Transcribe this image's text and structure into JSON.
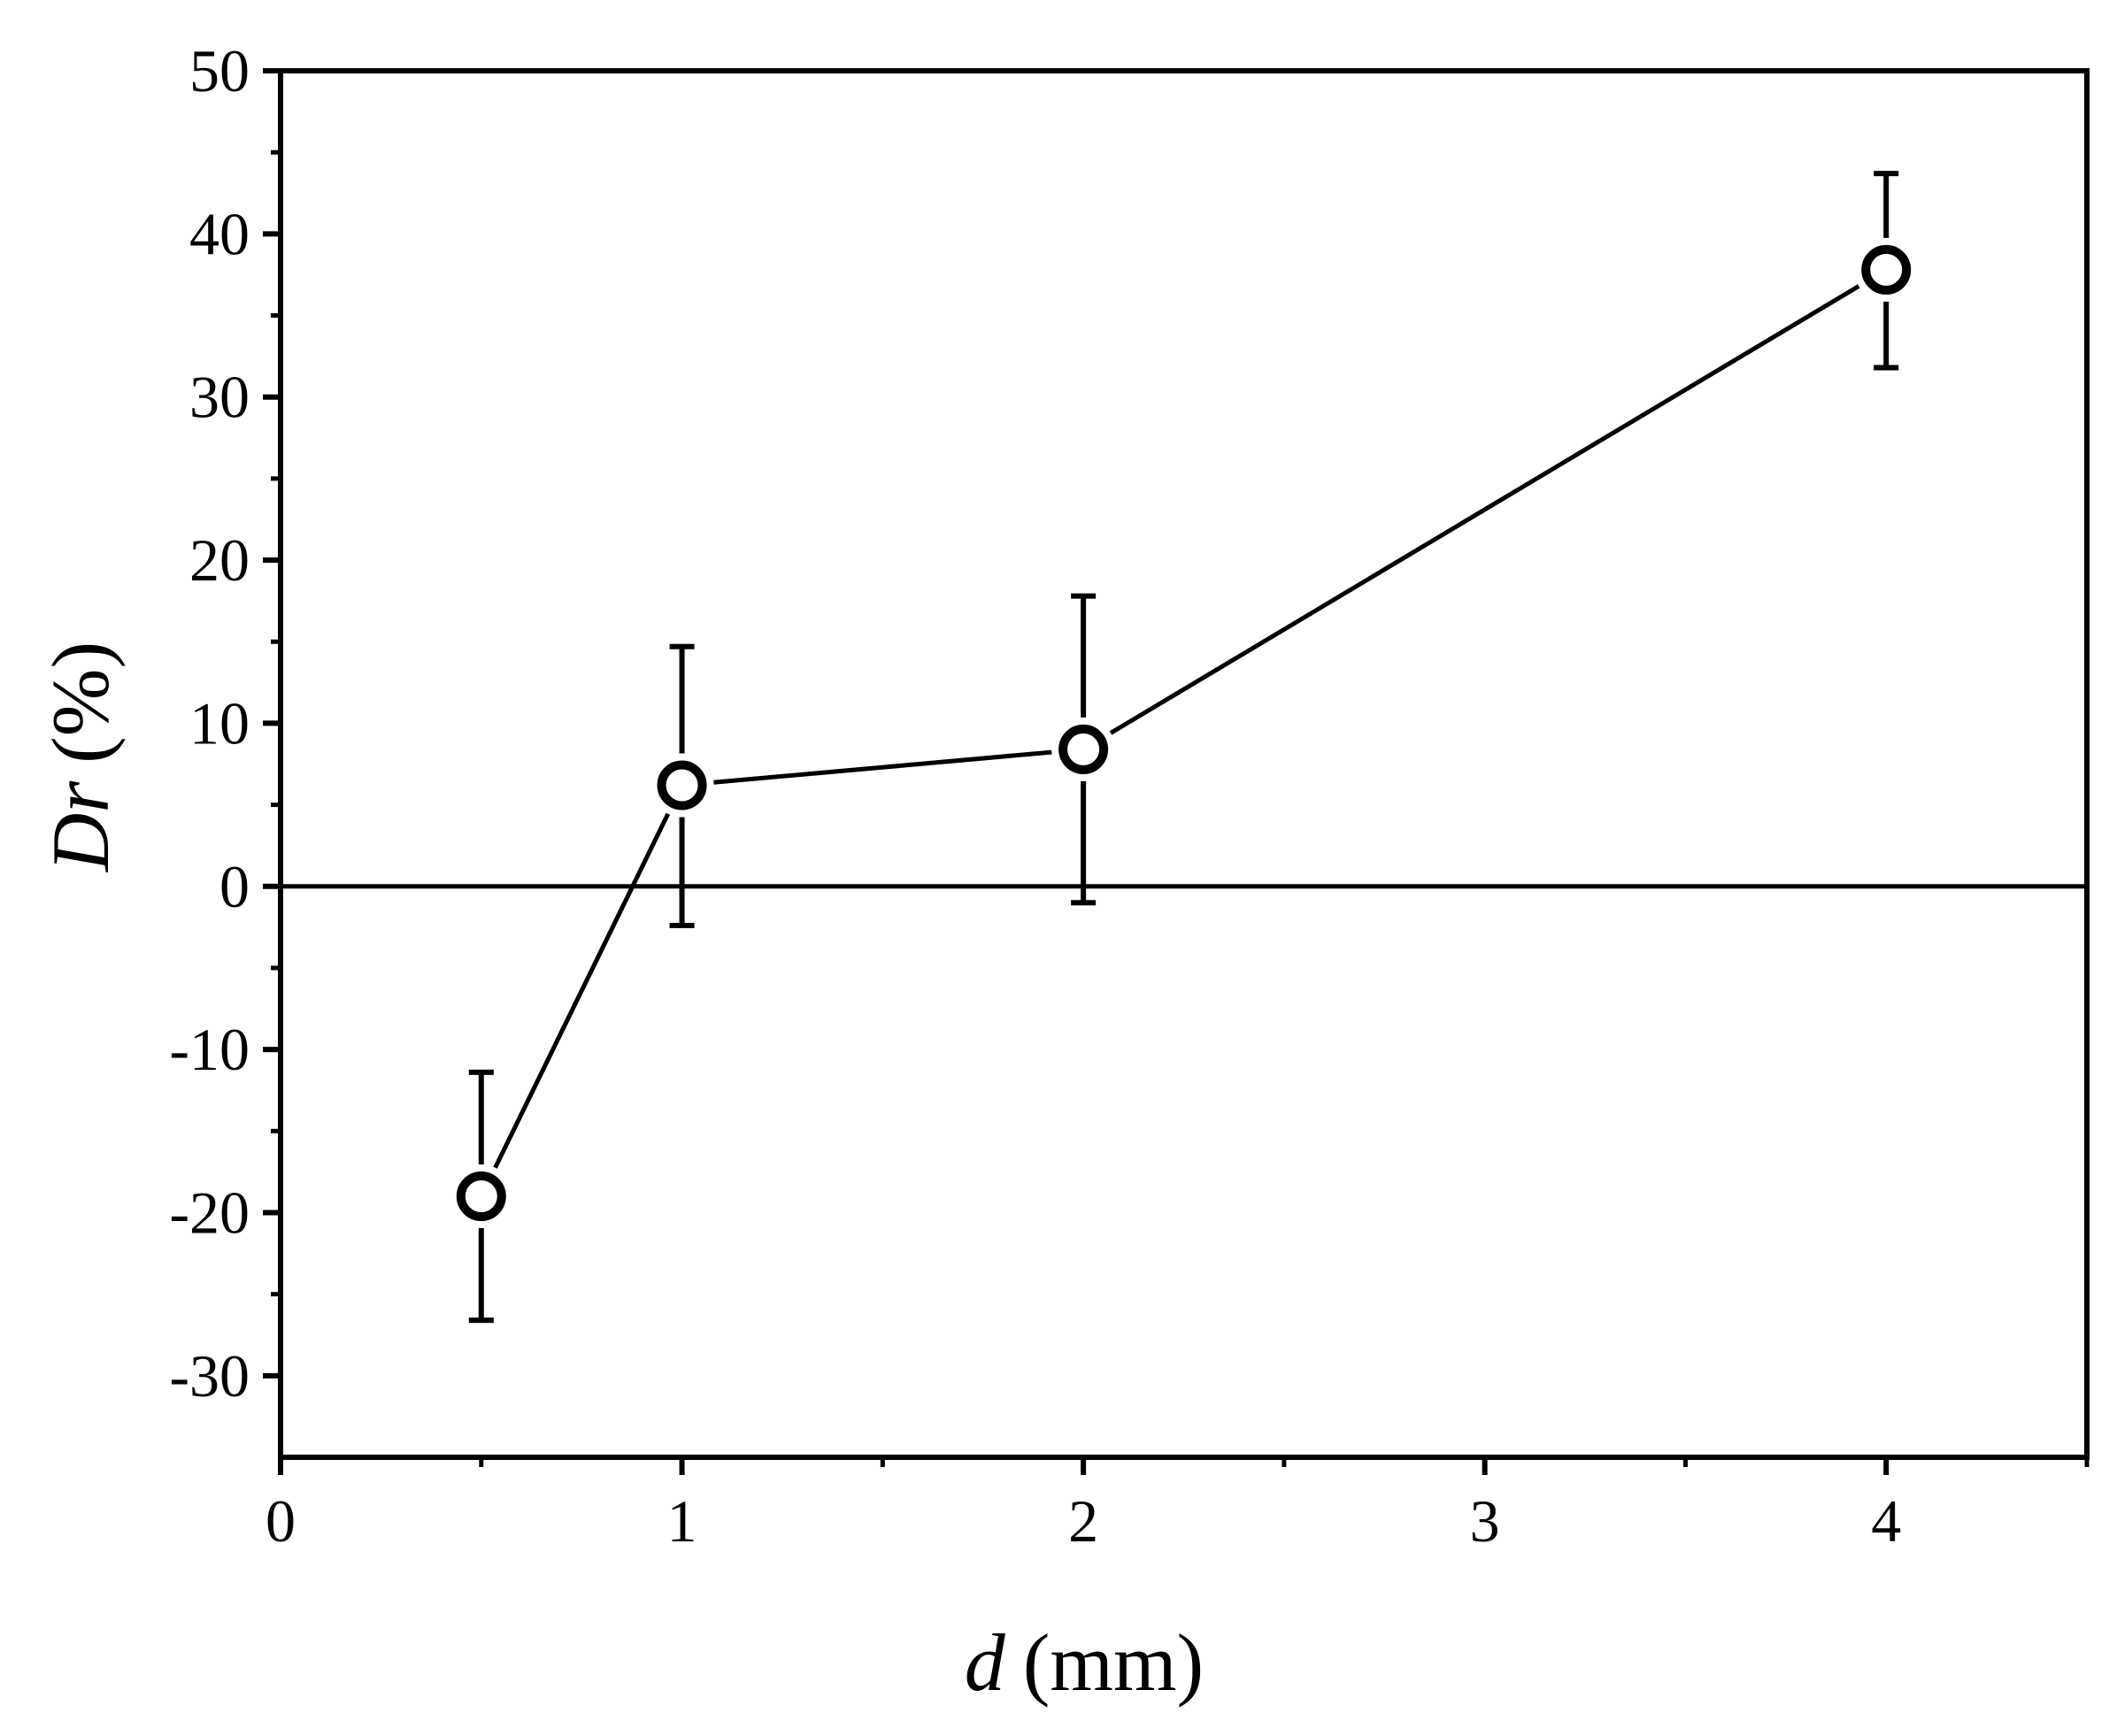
{
  "chart_data": {
    "type": "scatter",
    "title": "",
    "xlabel": {
      "symbol": "d",
      "unit": "(mm)"
    },
    "ylabel": {
      "symbol": "Dr",
      "unit": "(%)"
    },
    "xlim": [
      0,
      4.5
    ],
    "ylim": [
      -35,
      50
    ],
    "x_ticks": [
      0,
      1,
      2,
      3,
      4
    ],
    "x_tick_labels": [
      "0",
      "1",
      "2",
      "3",
      "4"
    ],
    "x_minor_ticks": [
      0.5,
      1.5,
      2.5,
      3.5,
      4.5
    ],
    "y_ticks": [
      -30,
      -20,
      -10,
      0,
      10,
      20,
      30,
      40,
      50
    ],
    "y_tick_labels": [
      "-30",
      "-20",
      "-10",
      "0",
      "10",
      "20",
      "30",
      "40",
      "50"
    ],
    "y_minor_ticks": [
      -25,
      -15,
      -5,
      5,
      15,
      25,
      35,
      45
    ],
    "reference_line_y": 0,
    "grid": false,
    "marker": "open-circle",
    "line_connected": true,
    "colors": {
      "line": "#000000",
      "marker_fill": "#ffffff",
      "axes": "#000000"
    },
    "series": [
      {
        "x": [
          0.5,
          1,
          2,
          4
        ],
        "y": [
          -19,
          6.2,
          8.4,
          37.8
        ],
        "error_upper": [
          -11.4,
          14.7,
          17.8,
          43.7
        ],
        "error_lower": [
          -26.6,
          -2.4,
          -1,
          31.8
        ]
      }
    ]
  }
}
